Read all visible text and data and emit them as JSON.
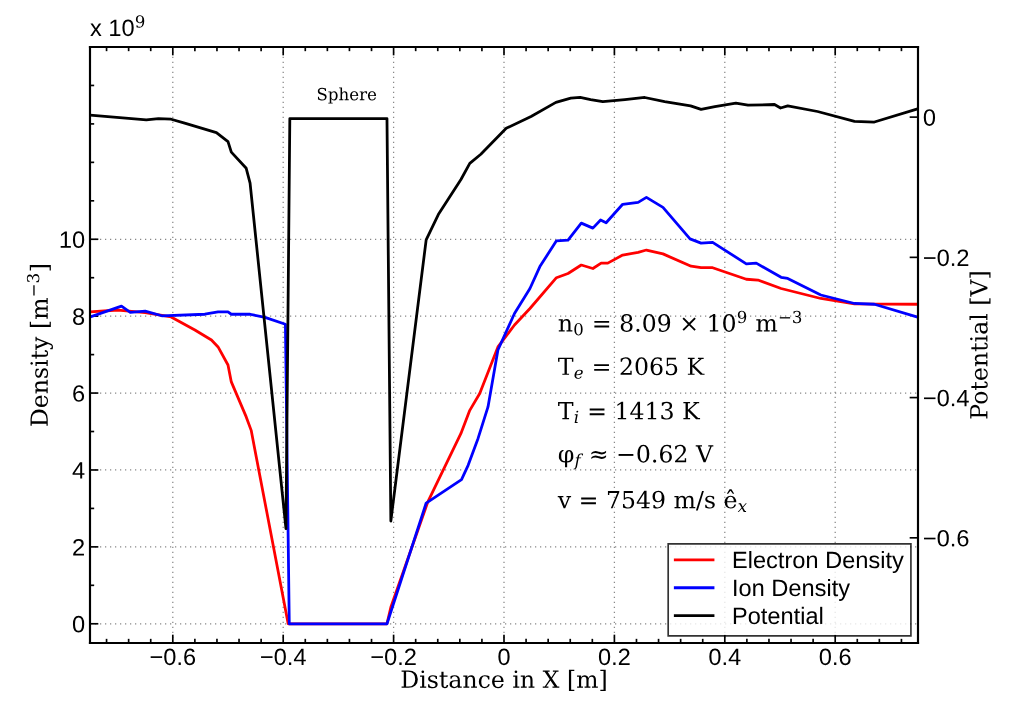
{
  "chart_data": {
    "type": "line",
    "xlabel": "Distance in X [m]",
    "ylabel": "Density [m$^{−3}$]",
    "y2label": "Potential [V]",
    "xlim": [
      -0.75,
      0.75
    ],
    "xticks": [
      -0.6,
      -0.4,
      -0.2,
      0,
      0.2,
      0.4,
      0.6
    ],
    "ylim": [
      -0.5,
      15
    ],
    "yticks": [
      0,
      2,
      4,
      6,
      8,
      10
    ],
    "y2lim": [
      -0.75,
      0.1
    ],
    "y2ticks": [
      -0.6,
      -0.4,
      -0.2,
      0
    ],
    "grid": true,
    "legend": "bottom right",
    "line_style": "solid",
    "marker": "none",
    "annotations": [
      "x 10$^{9}$",
      "Sphere",
      "n$_{0}$ = 8.09 × 10$^{9}$ m$^{−3}$",
      "T$_{e}$ = 2065 K",
      "T$_{i}$ = 1413 K",
      "φ$_{f}$ ≈ −0.62 V",
      "v = 7549 m/s ê$_{x}$"
    ],
    "series": [
      {
        "name": "Electron Density",
        "color": "#ff0000",
        "x": [
          -0.75,
          -0.699,
          -0.65,
          -0.603,
          -0.56,
          -0.53,
          -0.518,
          -0.5,
          -0.494,
          -0.467,
          -0.458,
          -0.391,
          -0.212,
          -0.205,
          -0.138,
          -0.078,
          -0.062,
          -0.044,
          -0.011,
          0.019,
          0.047,
          0.095,
          0.116,
          0.14,
          0.161,
          0.176,
          0.188,
          0.215,
          0.243,
          0.258,
          0.288,
          0.339,
          0.357,
          0.378,
          0.439,
          0.46,
          0.502,
          0.574,
          0.635,
          0.75
        ],
        "values": [
          8.11,
          8.16,
          8.09,
          7.98,
          7.64,
          7.38,
          7.2,
          6.73,
          6.29,
          5.38,
          5.03,
          0,
          0,
          0.43,
          3.17,
          4.95,
          5.55,
          5.99,
          7.2,
          7.77,
          8.2,
          9.0,
          9.11,
          9.33,
          9.24,
          9.38,
          9.38,
          9.59,
          9.66,
          9.72,
          9.62,
          9.3,
          9.26,
          9.26,
          8.96,
          8.94,
          8.72,
          8.46,
          8.32,
          8.31
        ]
      },
      {
        "name": "Ion Density",
        "color": "#0000ff",
        "x": [
          -0.75,
          -0.693,
          -0.677,
          -0.65,
          -0.62,
          -0.542,
          -0.518,
          -0.5,
          -0.494,
          -0.46,
          -0.433,
          -0.396,
          -0.389,
          -0.212,
          -0.141,
          -0.077,
          -0.065,
          -0.047,
          -0.029,
          -0.011,
          0.019,
          0.047,
          0.065,
          0.095,
          0.116,
          0.14,
          0.161,
          0.175,
          0.185,
          0.215,
          0.243,
          0.258,
          0.288,
          0.337,
          0.357,
          0.378,
          0.439,
          0.457,
          0.502,
          0.514,
          0.574,
          0.635,
          0.671,
          0.75
        ],
        "values": [
          7.98,
          8.26,
          8.1,
          8.13,
          8.01,
          8.05,
          8.11,
          8.11,
          8.05,
          8.05,
          7.97,
          7.79,
          0,
          0,
          3.14,
          3.75,
          4.12,
          4.82,
          5.64,
          7.12,
          8.07,
          8.72,
          9.29,
          9.96,
          9.98,
          10.42,
          10.29,
          10.5,
          10.43,
          10.91,
          10.96,
          11.09,
          10.83,
          10.01,
          9.9,
          9.92,
          9.36,
          9.38,
          9.01,
          8.98,
          8.55,
          8.33,
          8.31,
          7.97
        ]
      },
      {
        "name": "Potential",
        "color": "#000000",
        "axis": "y2",
        "x": [
          -0.75,
          -0.648,
          -0.626,
          -0.603,
          -0.577,
          -0.521,
          -0.5,
          -0.494,
          -0.467,
          -0.46,
          -0.395,
          -0.388,
          -0.212,
          -0.205,
          -0.141,
          -0.119,
          -0.078,
          -0.062,
          -0.042,
          0.004,
          0.049,
          0.094,
          0.121,
          0.138,
          0.157,
          0.179,
          0.219,
          0.255,
          0.291,
          0.338,
          0.357,
          0.382,
          0.42,
          0.442,
          0.49,
          0.501,
          0.514,
          0.568,
          0.635,
          0.671,
          0.75
        ],
        "values": [
          0.003,
          -0.004,
          -0.002,
          -0.003,
          -0.009,
          -0.022,
          -0.035,
          -0.05,
          -0.073,
          -0.094,
          -0.587,
          -0.002,
          -0.002,
          -0.576,
          -0.175,
          -0.139,
          -0.089,
          -0.066,
          -0.053,
          -0.016,
          0.001,
          0.021,
          0.027,
          0.028,
          0.025,
          0.022,
          0.025,
          0.028,
          0.022,
          0.016,
          0.011,
          0.015,
          0.02,
          0.017,
          0.018,
          0.013,
          0.016,
          0.008,
          -0.006,
          -0.007,
          0.012
        ]
      }
    ]
  }
}
